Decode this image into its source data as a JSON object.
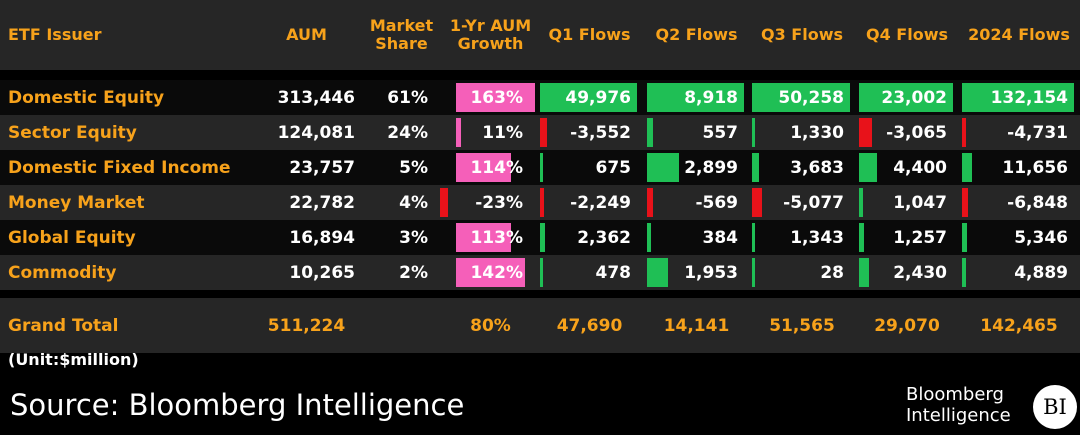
{
  "chart_data": {
    "type": "table",
    "columns": [
      "ETF Issuer",
      "AUM",
      "Market Share",
      "1-Yr AUM Growth",
      "Q1 Flows",
      "Q2 Flows",
      "Q3 Flows",
      "Q4 Flows",
      "2024 Flows"
    ],
    "rows": [
      {
        "issuer": "Domestic Equity",
        "aum": "313,446",
        "share": "61%",
        "growth": "163%",
        "q1": "49,976",
        "q2": "8,918",
        "q3": "50,258",
        "q4": "23,002",
        "y2024": "132,154"
      },
      {
        "issuer": "Sector Equity",
        "aum": "124,081",
        "share": "24%",
        "growth": "11%",
        "q1": "-3,552",
        "q2": "557",
        "q3": "1,330",
        "q4": "-3,065",
        "y2024": "-4,731"
      },
      {
        "issuer": "Domestic Fixed Income",
        "aum": "23,757",
        "share": "5%",
        "growth": "114%",
        "q1": "675",
        "q2": "2,899",
        "q3": "3,683",
        "q4": "4,400",
        "y2024": "11,656"
      },
      {
        "issuer": "Money Market",
        "aum": "22,782",
        "share": "4%",
        "growth": "-23%",
        "q1": "-2,249",
        "q2": "-569",
        "q3": "-5,077",
        "q4": "1,047",
        "y2024": "-6,848"
      },
      {
        "issuer": "Global Equity",
        "aum": "16,894",
        "share": "3%",
        "growth": "113%",
        "q1": "2,362",
        "q2": "384",
        "q3": "1,343",
        "q4": "1,257",
        "y2024": "5,346"
      },
      {
        "issuer": "Commodity",
        "aum": "10,265",
        "share": "2%",
        "growth": "142%",
        "q1": "478",
        "q2": "1,953",
        "q3": "28",
        "q4": "2,430",
        "y2024": "4,889"
      }
    ],
    "total": {
      "issuer": "Grand Total",
      "aum": "511,224",
      "share": "",
      "growth": "80%",
      "q1": "47,690",
      "q2": "14,141",
      "q3": "51,565",
      "q4": "29,070",
      "y2024": "142,465"
    },
    "bar_values": {
      "growth": [
        163,
        11,
        114,
        -23,
        113,
        142
      ],
      "q1": [
        49976,
        -3552,
        675,
        -2249,
        2362,
        478
      ],
      "q2": [
        8918,
        557,
        2899,
        -569,
        384,
        1953
      ],
      "q3": [
        50258,
        1330,
        3683,
        -5077,
        1343,
        28
      ],
      "q4": [
        23002,
        -3065,
        4400,
        1047,
        1257,
        2430
      ],
      "y2024": [
        132154,
        -4731,
        11656,
        -6848,
        5346,
        4889
      ]
    }
  },
  "unit_note": "(Unit:$million)",
  "source": "Source: Bloomberg Intelligence",
  "logo": {
    "line1": "Bloomberg",
    "line2": "Intelligence",
    "badge": "BI"
  },
  "colors": {
    "header_text": "#f7a21b",
    "positive": "#1fbf55",
    "negative": "#e8121a",
    "growth": "#f55fb9",
    "row_dark": "#0a0a0a",
    "row_light": "#262626"
  }
}
